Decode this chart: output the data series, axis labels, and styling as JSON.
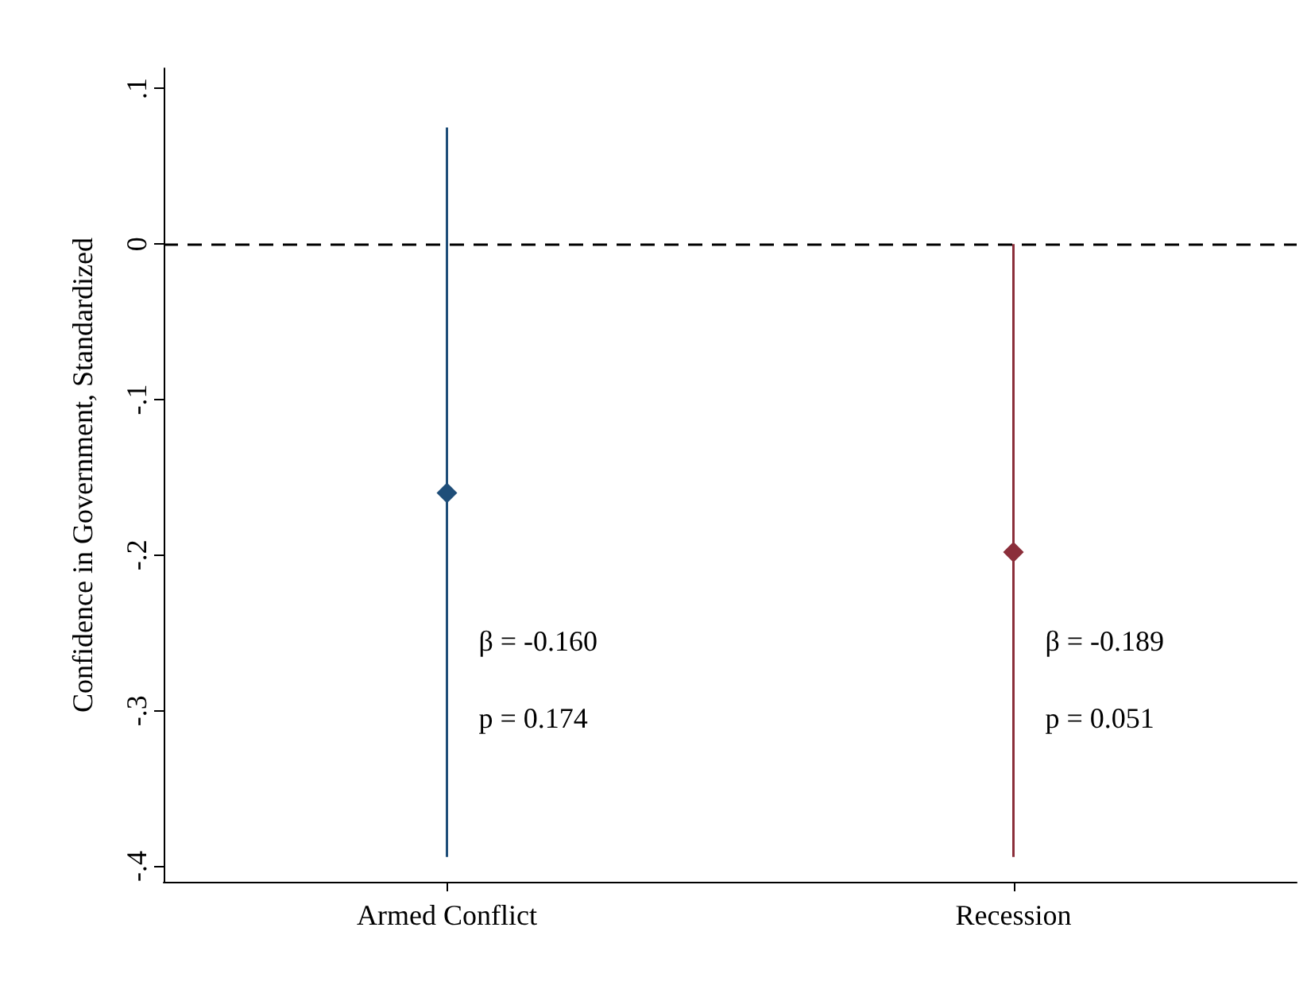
{
  "chart_data": {
    "type": "scatter",
    "ylabel": "Confidence in Government, Standardized",
    "categories": [
      "Armed Conflict",
      "Recession"
    ],
    "values": [
      -0.16,
      -0.198
    ],
    "colors": [
      "#1f4e79",
      "#8b2e3a"
    ],
    "errors": [
      [
        -0.394,
        0.075
      ],
      [
        -0.394,
        0.0
      ]
    ],
    "ylim": [
      -0.41,
      0.113
    ],
    "yticks": [
      {
        "value": 0.1,
        "label": ".1"
      },
      {
        "value": 0,
        "label": "0"
      },
      {
        "value": -0.1,
        "label": "-.1"
      },
      {
        "value": -0.2,
        "label": "-.2"
      },
      {
        "value": -0.3,
        "label": "-.3"
      },
      {
        "value": -0.4,
        "label": "-.4"
      }
    ],
    "ref_lines": [
      {
        "axis": "y",
        "value": 0,
        "label": null,
        "color": "#000000",
        "line_style": "dashed"
      }
    ],
    "annotations": [
      {
        "text": "β = -0.160",
        "x": "Armed Conflict",
        "y": -0.255
      },
      {
        "text": "p = 0.174",
        "x": "Armed Conflict",
        "y": -0.305
      },
      {
        "text": "β = -0.189",
        "x": "Recession",
        "y": -0.255
      },
      {
        "text": "p = 0.051",
        "x": "Recession",
        "y": -0.305
      }
    ],
    "marker": "diamond",
    "grid": false
  }
}
